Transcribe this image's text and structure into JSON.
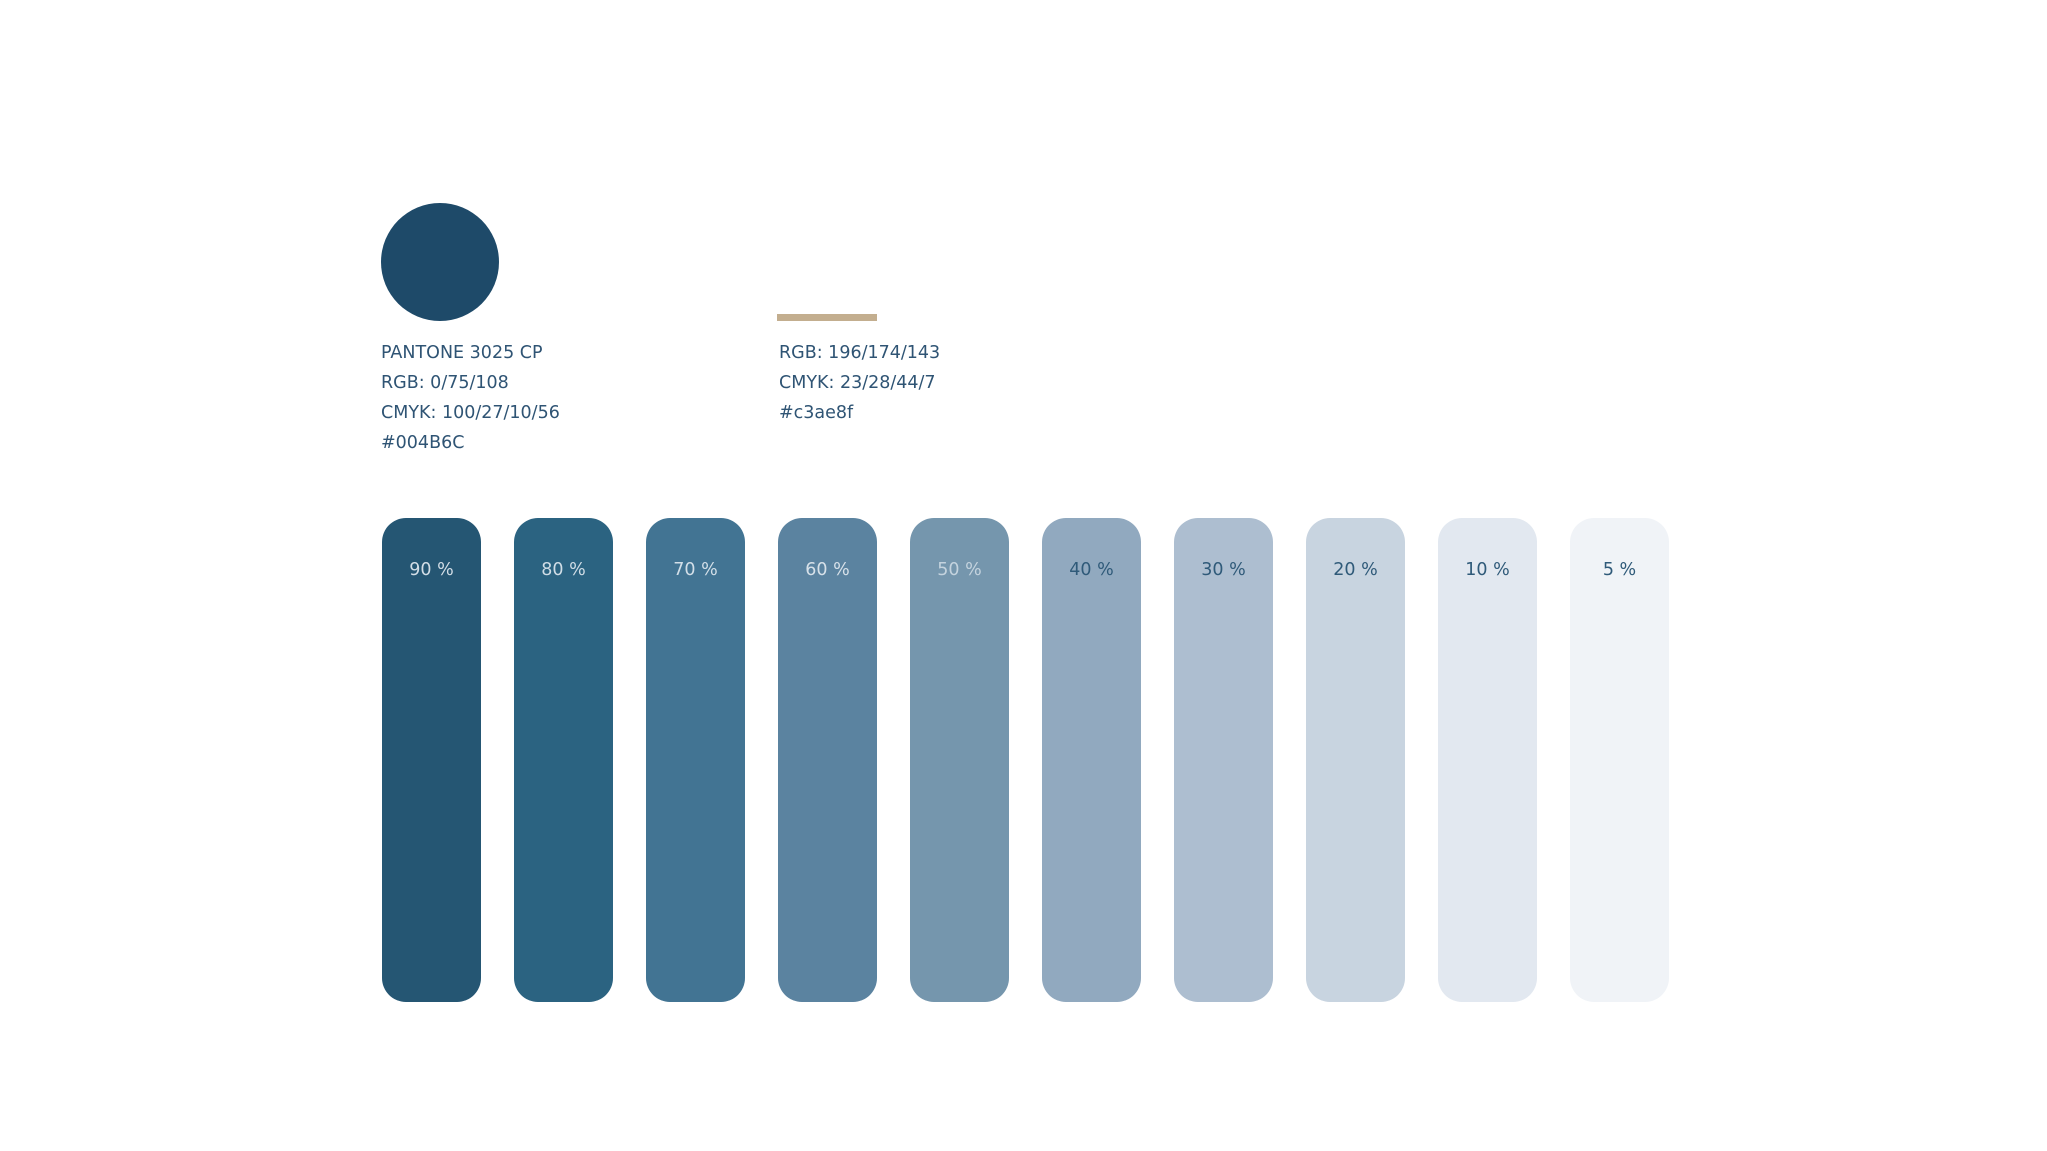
{
  "primary": {
    "color": "#1e4a69",
    "pantone": "PANTONE 3025 CP",
    "rgb": "RGB: 0/75/108",
    "cmyk": "CMYK: 100/27/10/56",
    "hex": "#004B6C"
  },
  "accent": {
    "color": "#c3ae8f",
    "rgb": "RGB: 196/174/143",
    "cmyk": "CMYK: 23/28/44/7",
    "hex": "#c3ae8f"
  },
  "tints": [
    {
      "label": "90 %",
      "color": "#255673",
      "text_color": "#d3dee7"
    },
    {
      "label": "80 %",
      "color": "#2b6381",
      "text_color": "#d0dde6"
    },
    {
      "label": "70 %",
      "color": "#427493",
      "text_color": "#d3dfe8"
    },
    {
      "label": "60 %",
      "color": "#5b83a0",
      "text_color": "#d7e1e9"
    },
    {
      "label": "50 %",
      "color": "#7596ad",
      "text_color": "#c4d3de"
    },
    {
      "label": "40 %",
      "color": "#91a9bf",
      "text_color": "#2f5a79"
    },
    {
      "label": "30 %",
      "color": "#adbed0",
      "text_color": "#2f5a79"
    },
    {
      "label": "20 %",
      "color": "#c8d4e0",
      "text_color": "#2f5a79"
    },
    {
      "label": "10 %",
      "color": "#e2e8f0",
      "text_color": "#2f5a79"
    },
    {
      "label": "5 %",
      "color": "#f0f3f7",
      "text_color": "#2f5a79"
    }
  ]
}
